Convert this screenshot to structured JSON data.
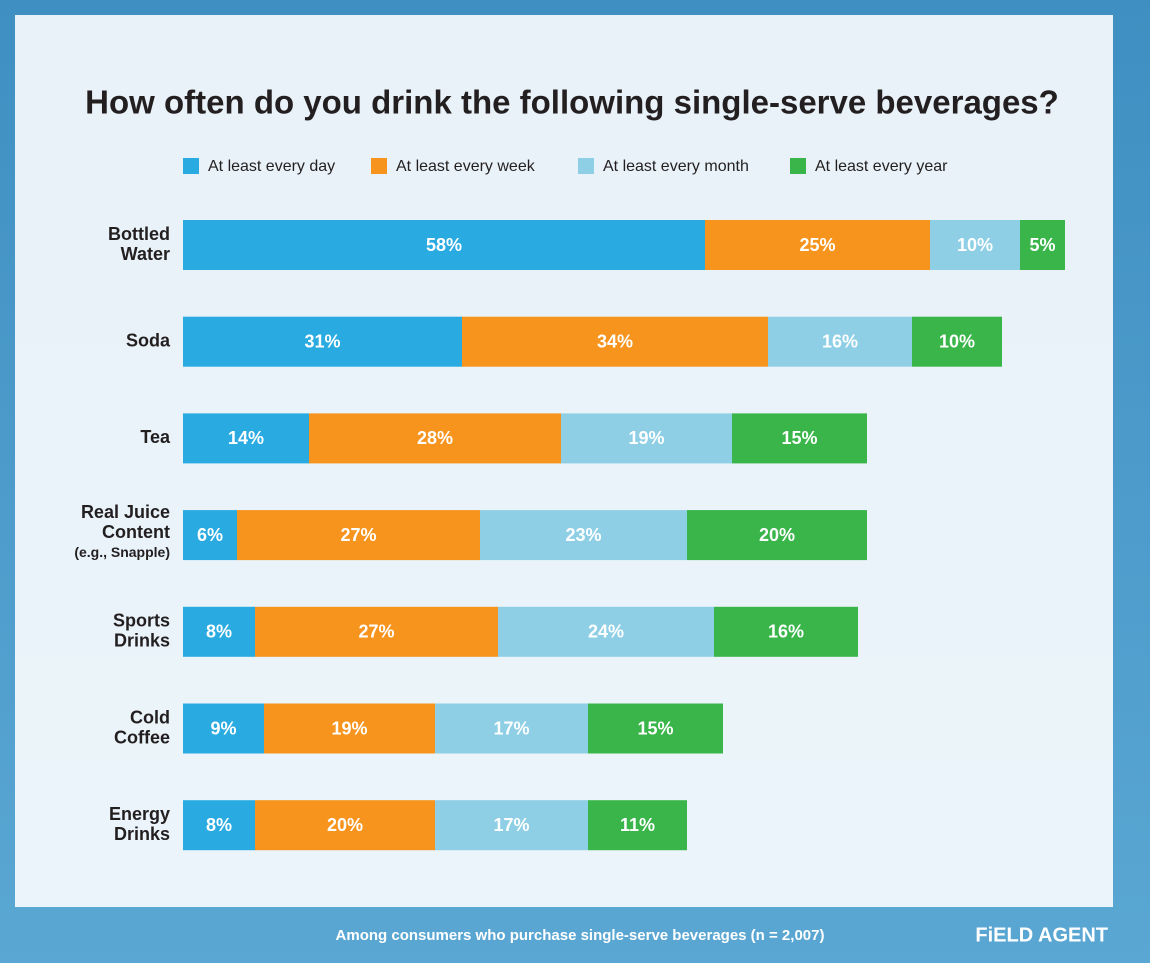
{
  "chart_data": {
    "type": "stacked_barh",
    "title": "How often do you drink the following single-serve beverages?",
    "categories": [
      [
        "Bottled",
        "Water"
      ],
      [
        "Soda"
      ],
      [
        "Tea"
      ],
      [
        "Real Juice",
        "Content",
        "(e.g., Snapple)"
      ],
      [
        "Sports",
        "Drinks"
      ],
      [
        "Cold",
        "Coffee"
      ],
      [
        "Energy",
        "Drinks"
      ]
    ],
    "series": [
      {
        "name": "At least every day",
        "color": "#29abe2",
        "values": [
          58,
          31,
          14,
          6,
          8,
          9,
          8
        ],
        "value_labels": [
          "58%",
          "31%",
          "14%",
          "6%",
          "8%",
          "9%",
          "8%"
        ]
      },
      {
        "name": "At least every week",
        "color": "#f7941d",
        "values": [
          25,
          34,
          28,
          27,
          27,
          19,
          20
        ],
        "value_labels": [
          "25%",
          "34%",
          "28%",
          "27%",
          "27%",
          "19%",
          "20%"
        ]
      },
      {
        "name": "At least every month",
        "color": "#8ecfe6",
        "values": [
          10,
          16,
          19,
          23,
          24,
          17,
          17
        ],
        "value_labels": [
          "10%",
          "16%",
          "19%",
          "23%",
          "24%",
          "17%",
          "17%"
        ]
      },
      {
        "name": "At least every year",
        "color": "#39b54a",
        "values": [
          5,
          10,
          15,
          20,
          16,
          15,
          11
        ],
        "value_labels": [
          "5%",
          "10%",
          "15%",
          "20%",
          "16%",
          "15%",
          "11%"
        ]
      }
    ],
    "xlim": [
      0,
      100
    ],
    "footnote": "Among consumers who purchase single-serve beverages (n = 2,007)",
    "logo": "FiELD AGENT"
  }
}
